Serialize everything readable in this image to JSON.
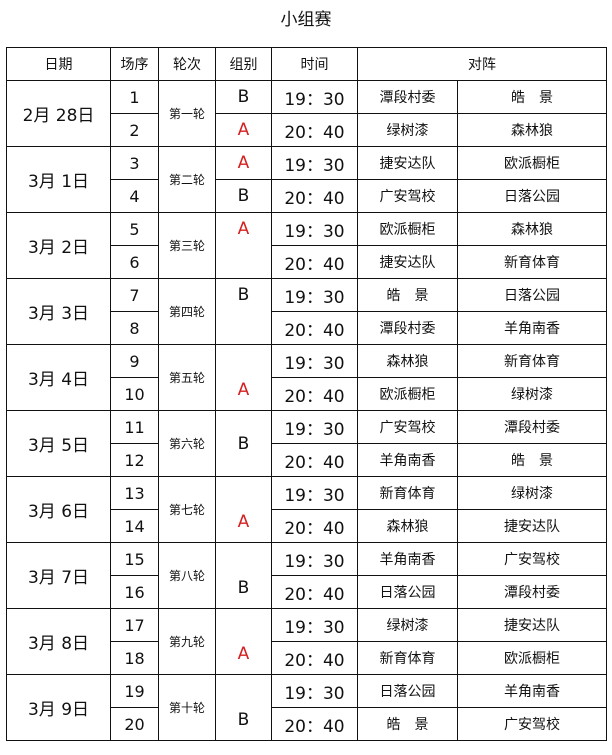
{
  "title": "小组赛",
  "headers": {
    "date": "日期",
    "seq": "场序",
    "round": "轮次",
    "group": "组别",
    "time": "时间",
    "match": "对阵"
  },
  "colors": {
    "group_A": "#d42020",
    "group_B": "#111111"
  },
  "days": [
    {
      "date": "2月 28日",
      "round": "第一轮",
      "groups": [
        "B",
        "A"
      ],
      "matches": [
        {
          "seq": "1",
          "time": "19：30",
          "home": "潭段村委",
          "away": "皓　景"
        },
        {
          "seq": "2",
          "time": "20：40",
          "home": "绿树漆",
          "away": "森林狼"
        }
      ]
    },
    {
      "date": "3月 1日",
      "round": "第二轮",
      "groups": [
        "A",
        "B"
      ],
      "matches": [
        {
          "seq": "3",
          "time": "19：30",
          "home": "捷安达队",
          "away": "欧派橱柜"
        },
        {
          "seq": "4",
          "time": "20：40",
          "home": "广安驾校",
          "away": "日落公园"
        }
      ]
    },
    {
      "date": "3月 2日",
      "round": "第三轮",
      "groups": [
        "A"
      ],
      "matches": [
        {
          "seq": "5",
          "time": "19：30",
          "home": "欧派橱柜",
          "away": "森林狼"
        },
        {
          "seq": "6",
          "time": "20：40",
          "home": "捷安达队",
          "away": "新育体育"
        }
      ]
    },
    {
      "date": "3月 3日",
      "round": "第四轮",
      "groups": [
        "B"
      ],
      "matches": [
        {
          "seq": "7",
          "time": "19：30",
          "home": "皓　景",
          "away": "日落公园"
        },
        {
          "seq": "8",
          "time": "20：40",
          "home": "潭段村委",
          "away": "羊角南香"
        }
      ]
    },
    {
      "date": "3月 4日",
      "round": "第五轮",
      "groups": [
        "A"
      ],
      "matches": [
        {
          "seq": "9",
          "time": "19：30",
          "home": "森林狼",
          "away": "新育体育"
        },
        {
          "seq": "10",
          "time": "20：40",
          "home": "欧派橱柜",
          "away": "绿树漆"
        }
      ]
    },
    {
      "date": "3月 5日",
      "round": "第六轮",
      "groups": [
        "B"
      ],
      "matches": [
        {
          "seq": "11",
          "time": "19：30",
          "home": "广安驾校",
          "away": "潭段村委"
        },
        {
          "seq": "12",
          "time": "20：40",
          "home": "羊角南香",
          "away": "皓　景"
        }
      ]
    },
    {
      "date": "3月 6日",
      "round": "第七轮",
      "groups": [
        "A"
      ],
      "matches": [
        {
          "seq": "13",
          "time": "19：30",
          "home": "新育体育",
          "away": "绿树漆"
        },
        {
          "seq": "14",
          "time": "20：40",
          "home": "森林狼",
          "away": "捷安达队"
        }
      ]
    },
    {
      "date": "3月 7日",
      "round": "第八轮",
      "groups": [
        "B"
      ],
      "matches": [
        {
          "seq": "15",
          "time": "19：30",
          "home": "羊角南香",
          "away": "广安驾校"
        },
        {
          "seq": "16",
          "time": "20：40",
          "home": "日落公园",
          "away": "潭段村委"
        }
      ]
    },
    {
      "date": "3月 8日",
      "round": "第九轮",
      "groups": [
        "A"
      ],
      "matches": [
        {
          "seq": "17",
          "time": "19：30",
          "home": "绿树漆",
          "away": "捷安达队"
        },
        {
          "seq": "18",
          "time": "20：40",
          "home": "新育体育",
          "away": "欧派橱柜"
        }
      ]
    },
    {
      "date": "3月 9日",
      "round": "第十轮",
      "groups": [
        "B"
      ],
      "matches": [
        {
          "seq": "19",
          "time": "19：30",
          "home": "日落公园",
          "away": "羊角南香"
        },
        {
          "seq": "20",
          "time": "20：40",
          "home": "皓　景",
          "away": "广安驾校"
        }
      ]
    }
  ]
}
